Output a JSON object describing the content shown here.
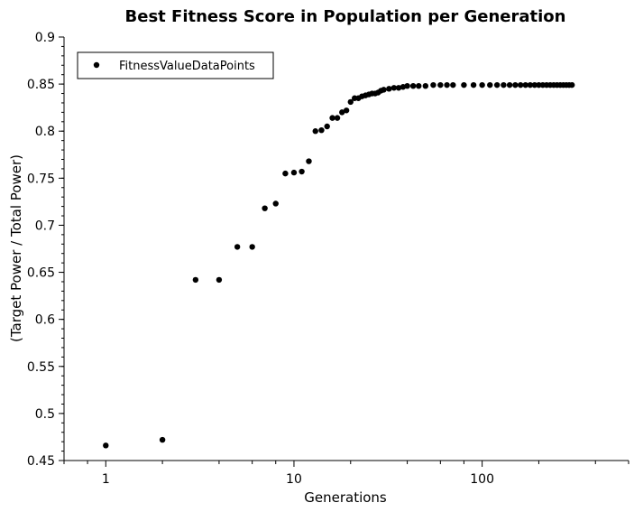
{
  "chart_data": {
    "type": "scatter",
    "title": "Best Fitness Score in Population per Generation",
    "xlabel": "Generations",
    "ylabel": "(Target Power / Total Power)",
    "x_scale": "log",
    "xlim": [
      0.6,
      600
    ],
    "ylim": [
      0.45,
      0.9
    ],
    "grid": false,
    "legend_position": "top-left",
    "x_ticks": [
      1,
      10,
      100
    ],
    "x_tick_labels": [
      "1",
      "10",
      "100"
    ],
    "y_ticks": [
      0.45,
      0.5,
      0.55,
      0.6,
      0.65,
      0.7,
      0.75,
      0.8,
      0.85,
      0.9
    ],
    "y_tick_labels": [
      "0.45",
      "0.5",
      "0.55",
      "0.6",
      "0.65",
      "0.7",
      "0.75",
      "0.8",
      "0.85",
      "0.9"
    ],
    "series": [
      {
        "name": "FitnessValueDataPoints",
        "color": "#000000",
        "marker": "circle",
        "x": [
          1,
          2,
          3,
          4,
          5,
          6,
          7,
          8,
          9,
          10,
          11,
          12,
          13,
          14,
          15,
          16,
          17,
          18,
          19,
          20,
          21,
          22,
          23,
          24,
          25,
          26,
          27,
          28,
          29,
          30,
          32,
          34,
          36,
          38,
          40,
          43,
          46,
          50,
          55,
          60,
          65,
          70,
          80,
          90,
          100,
          110,
          120,
          130,
          140,
          150,
          160,
          170,
          180,
          190,
          200,
          210,
          220,
          230,
          240,
          250,
          260,
          270,
          280,
          290,
          300
        ],
        "y": [
          0.466,
          0.472,
          0.642,
          0.642,
          0.677,
          0.677,
          0.718,
          0.723,
          0.755,
          0.756,
          0.757,
          0.768,
          0.8,
          0.801,
          0.805,
          0.814,
          0.814,
          0.82,
          0.822,
          0.831,
          0.835,
          0.835,
          0.837,
          0.838,
          0.839,
          0.84,
          0.84,
          0.841,
          0.843,
          0.844,
          0.845,
          0.846,
          0.846,
          0.847,
          0.848,
          0.848,
          0.848,
          0.848,
          0.849,
          0.849,
          0.849,
          0.849,
          0.849,
          0.849,
          0.849,
          0.849,
          0.849,
          0.849,
          0.849,
          0.849,
          0.849,
          0.849,
          0.849,
          0.849,
          0.849,
          0.849,
          0.849,
          0.849,
          0.849,
          0.849,
          0.849,
          0.849,
          0.849,
          0.849,
          0.849
        ]
      }
    ]
  }
}
